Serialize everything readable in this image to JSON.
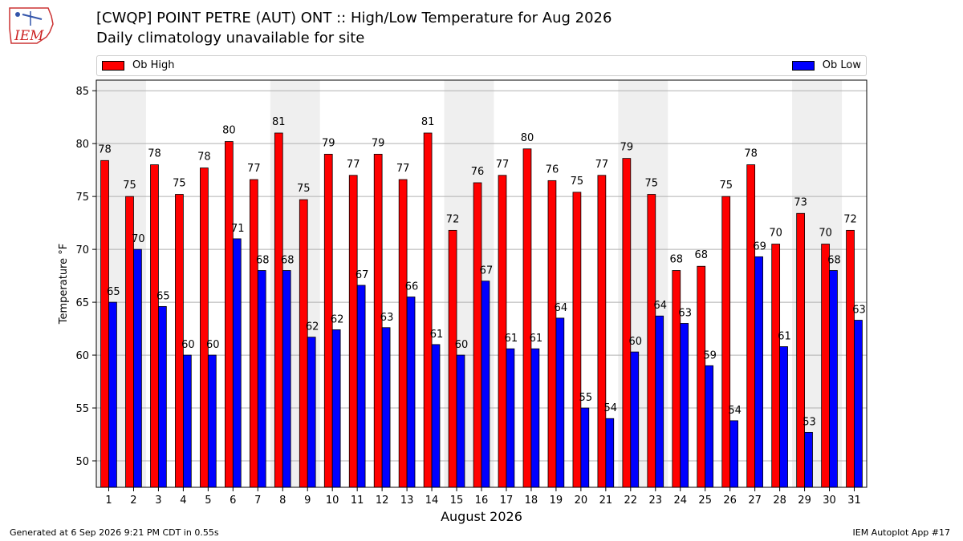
{
  "logo": {
    "text": "IEM"
  },
  "title": "[CWQP] POINT PETRE (AUT)  ONT :: High/Low Temperature for Aug 2026",
  "subtitle": "Daily climatology unavailable for site",
  "footer": {
    "left": "Generated at 6 Sep 2026 9:21 PM CDT in 0.55s",
    "right": "IEM Autoplot App #17"
  },
  "colors": {
    "high": "#ff0000",
    "low": "#0000ff",
    "weekend_band": "#efefef"
  },
  "chart_data": {
    "type": "bar",
    "xlabel": "August 2026",
    "ylabel": "Temperature °F",
    "ylim": [
      47.5,
      86
    ],
    "yticks": [
      50,
      55,
      60,
      65,
      70,
      75,
      80,
      85
    ],
    "grid": true,
    "legend_placement": "top",
    "categories": [
      "1",
      "2",
      "3",
      "4",
      "5",
      "6",
      "7",
      "8",
      "9",
      "10",
      "11",
      "12",
      "13",
      "14",
      "15",
      "16",
      "17",
      "18",
      "19",
      "20",
      "21",
      "22",
      "23",
      "24",
      "25",
      "26",
      "27",
      "28",
      "29",
      "30",
      "31"
    ],
    "weekend_days": [
      1,
      2,
      8,
      9,
      15,
      16,
      22,
      23,
      29,
      30
    ],
    "series": [
      {
        "name": "Ob High",
        "values": [
          78.4,
          75.0,
          78.0,
          75.2,
          77.7,
          80.2,
          76.6,
          81.0,
          74.7,
          79.0,
          77.0,
          79.0,
          76.6,
          81.0,
          71.8,
          76.3,
          77.0,
          79.5,
          76.5,
          75.4,
          77.0,
          78.6,
          75.2,
          68.0,
          68.4,
          75.0,
          78.0,
          70.5,
          73.4,
          70.5,
          71.8
        ],
        "labels": [
          "78",
          "75",
          "78",
          "75",
          "78",
          "80",
          "77",
          "81",
          "75",
          "79",
          "77",
          "79",
          "77",
          "81",
          "72",
          "76",
          "77",
          "80",
          "76",
          "75",
          "77",
          "79",
          "75",
          "68",
          "68",
          "75",
          "78",
          "70",
          "73",
          "70",
          "72"
        ]
      },
      {
        "name": "Ob Low",
        "values": [
          65.0,
          70.0,
          64.6,
          60.0,
          60.0,
          71.0,
          68.0,
          68.0,
          61.7,
          62.4,
          66.6,
          62.6,
          65.5,
          61.0,
          60.0,
          67.0,
          60.6,
          60.6,
          63.5,
          55.0,
          54.0,
          60.3,
          63.7,
          63.0,
          59.0,
          53.8,
          69.3,
          60.8,
          52.7,
          68.0,
          63.3
        ],
        "labels": [
          "65",
          "70",
          "65",
          "60",
          "60",
          "71",
          "68",
          "68",
          "62",
          "62",
          "67",
          "63",
          "66",
          "61",
          "60",
          "67",
          "61",
          "61",
          "64",
          "55",
          "54",
          "60",
          "64",
          "63",
          "59",
          "54",
          "69",
          "61",
          "53",
          "68",
          "63"
        ]
      }
    ]
  }
}
